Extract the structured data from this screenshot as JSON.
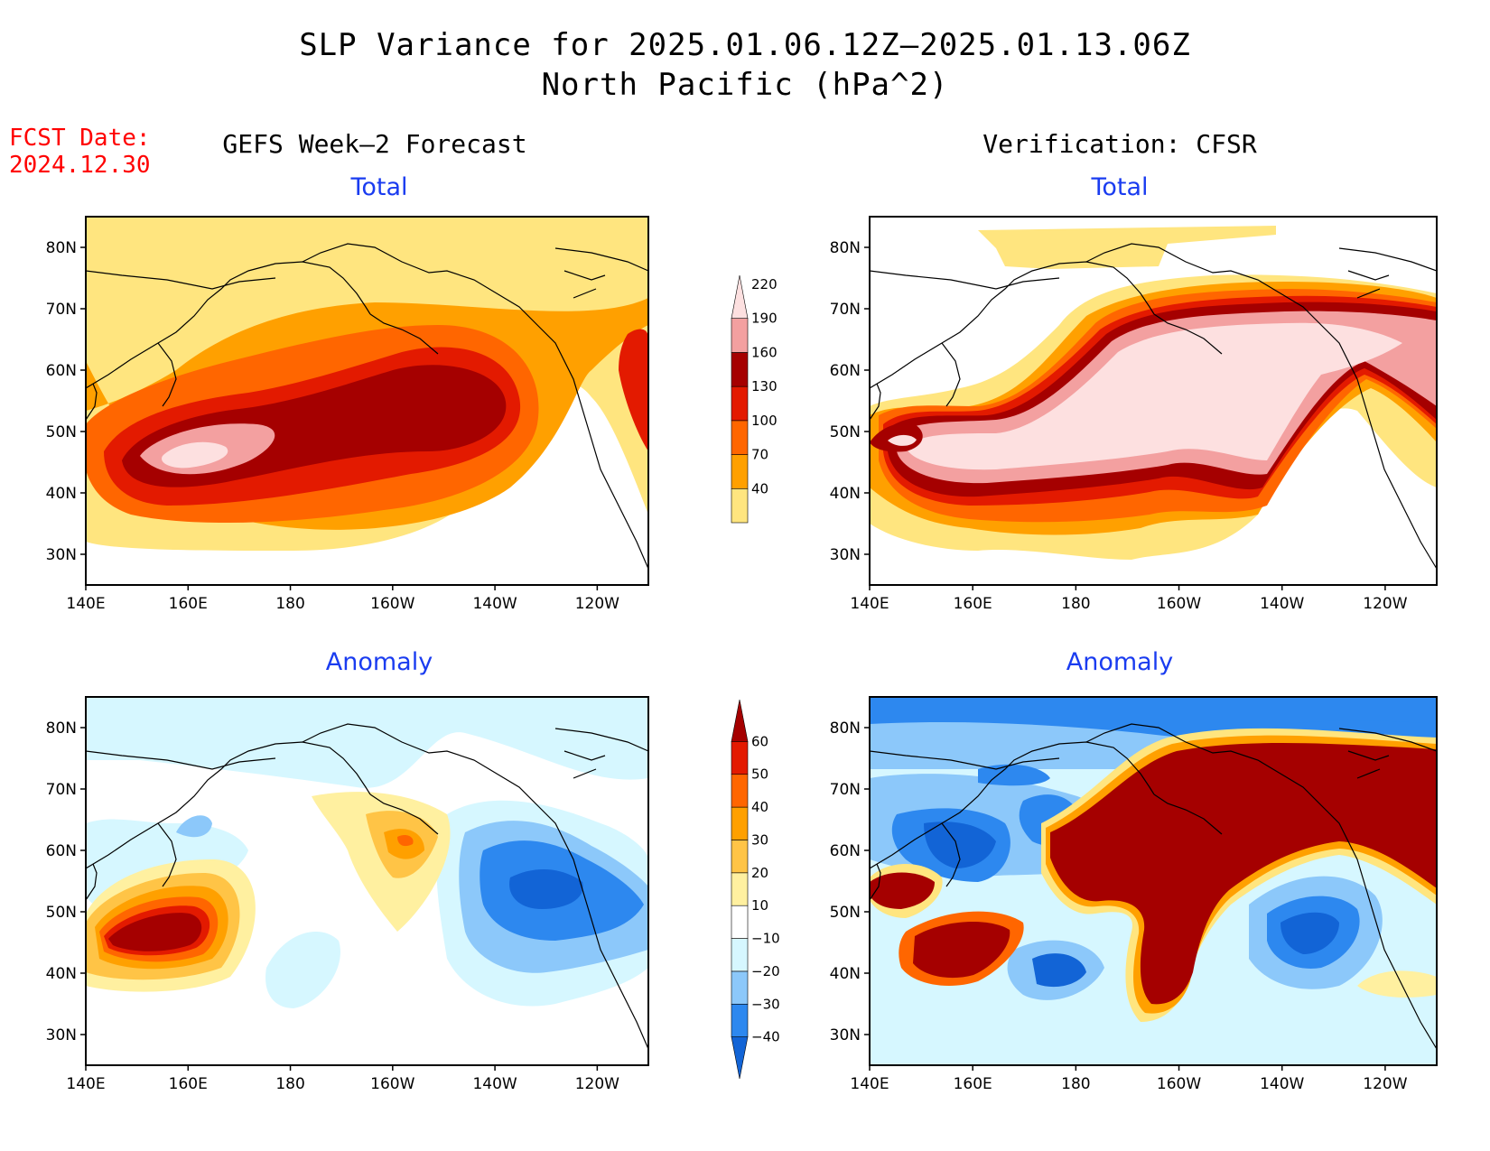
{
  "title": {
    "line1": "SLP Variance for 2025.01.06.12Z–2025.01.13.06Z",
    "line2": "North Pacific (hPa^2)"
  },
  "forecast_date": {
    "label": "FCST Date:",
    "value": "2024.12.30"
  },
  "columns": {
    "left": "GEFS Week–2 Forecast",
    "right": "Verification: CFSR"
  },
  "panel_titles": {
    "total": "Total",
    "anomaly": "Anomaly"
  },
  "axes": {
    "lon_ticks": [
      "140E",
      "160E",
      "180",
      "160W",
      "140W",
      "120W"
    ],
    "lat_ticks": [
      "30N",
      "40N",
      "50N",
      "60N",
      "70N",
      "80N"
    ],
    "lon_range": [
      140,
      250
    ],
    "lat_range": [
      25,
      85
    ]
  },
  "colorbars": {
    "total": {
      "labels": [
        "40",
        "70",
        "100",
        "130",
        "160",
        "190",
        "220"
      ],
      "colors": [
        "#ffe57f",
        "#ffa000",
        "#ff6600",
        "#e31a00",
        "#a50000",
        "#f3a0a0",
        "#fde0e0"
      ]
    },
    "anomaly": {
      "labels": [
        "−40",
        "−30",
        "−20",
        "−10",
        "10",
        "20",
        "30",
        "40",
        "50",
        "60"
      ],
      "colors": [
        "#1264d6",
        "#2d88ef",
        "#8cc8fa",
        "#d6f7ff",
        "#ffffff",
        "#fff0a0",
        "#ffc446",
        "#ffa000",
        "#ff6600",
        "#e31a00",
        "#a50000"
      ]
    }
  }
}
